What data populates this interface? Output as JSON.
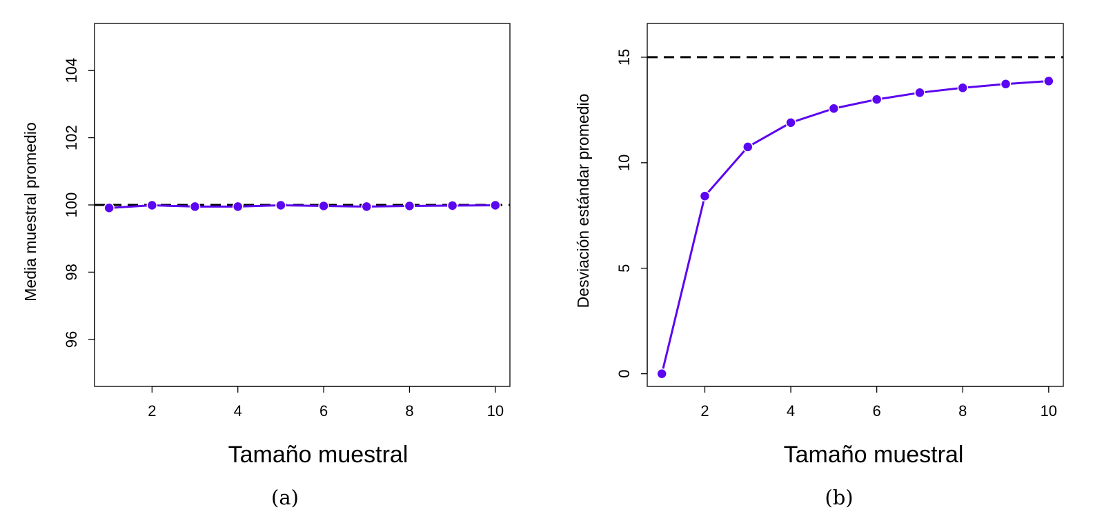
{
  "colors": {
    "series": "#5b05f0",
    "reference": "#000000"
  },
  "chart_data": [
    {
      "type": "line",
      "caption": "(a)",
      "xlabel": "Tamaño muestral",
      "ylabel": "Media muestral promedio",
      "xlim": [
        0.66,
        10.34
      ],
      "ylim": [
        94.6,
        105.4
      ],
      "xticks": [
        2,
        4,
        6,
        8,
        10
      ],
      "yticks": [
        96,
        98,
        100,
        102,
        104
      ],
      "x": [
        1,
        2,
        3,
        4,
        5,
        6,
        7,
        8,
        9,
        10
      ],
      "series": [
        {
          "values": [
            99.91,
            99.99,
            99.95,
            99.95,
            99.99,
            99.97,
            99.95,
            99.97,
            99.98,
            99.99
          ]
        }
      ],
      "reference_line": 100,
      "grid": false
    },
    {
      "type": "line",
      "caption": "(b)",
      "xlabel": "Tamaño muestral",
      "ylabel": "Desviación estándar promedio",
      "xlim": [
        0.66,
        10.34
      ],
      "ylim": [
        -0.6,
        16.6
      ],
      "xticks": [
        2,
        4,
        6,
        8,
        10
      ],
      "yticks": [
        0,
        5,
        10,
        15
      ],
      "x": [
        1,
        2,
        3,
        4,
        5,
        6,
        7,
        8,
        9,
        10
      ],
      "series": [
        {
          "values": [
            0.0,
            8.42,
            10.75,
            11.9,
            12.57,
            13.0,
            13.32,
            13.55,
            13.73,
            13.87
          ]
        }
      ],
      "reference_line": 15,
      "grid": false
    }
  ]
}
